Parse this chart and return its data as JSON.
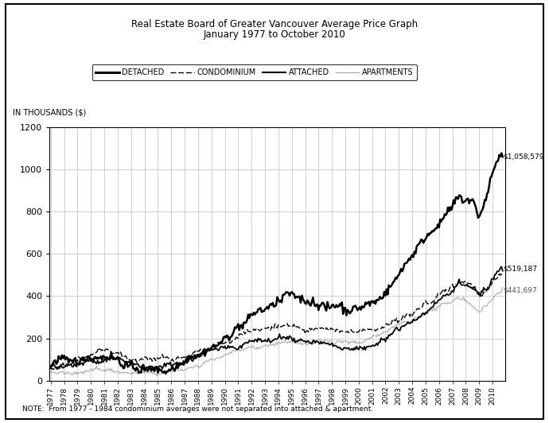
{
  "title_line1": "Real Estate Board of Greater Vancouver Average Price Graph",
  "title_line2": "January 1977 to October 2010",
  "ylabel": "IN THOUSANDS ($)",
  "note": "NOTE:  From 1977 - 1984 condominium averages were not separated into attached & apartment.",
  "ylim": [
    0,
    1200
  ],
  "yticks": [
    0,
    200,
    400,
    600,
    800,
    1000,
    1200
  ],
  "end_labels": {
    "detached": "$1,058,579",
    "attached": "$519,187",
    "apartments": "$441,697"
  },
  "legend": [
    "DETACHED",
    "CONDOMINIUM",
    "ATTACHED",
    "APARTMENTS"
  ],
  "bg_color": "#ffffff"
}
